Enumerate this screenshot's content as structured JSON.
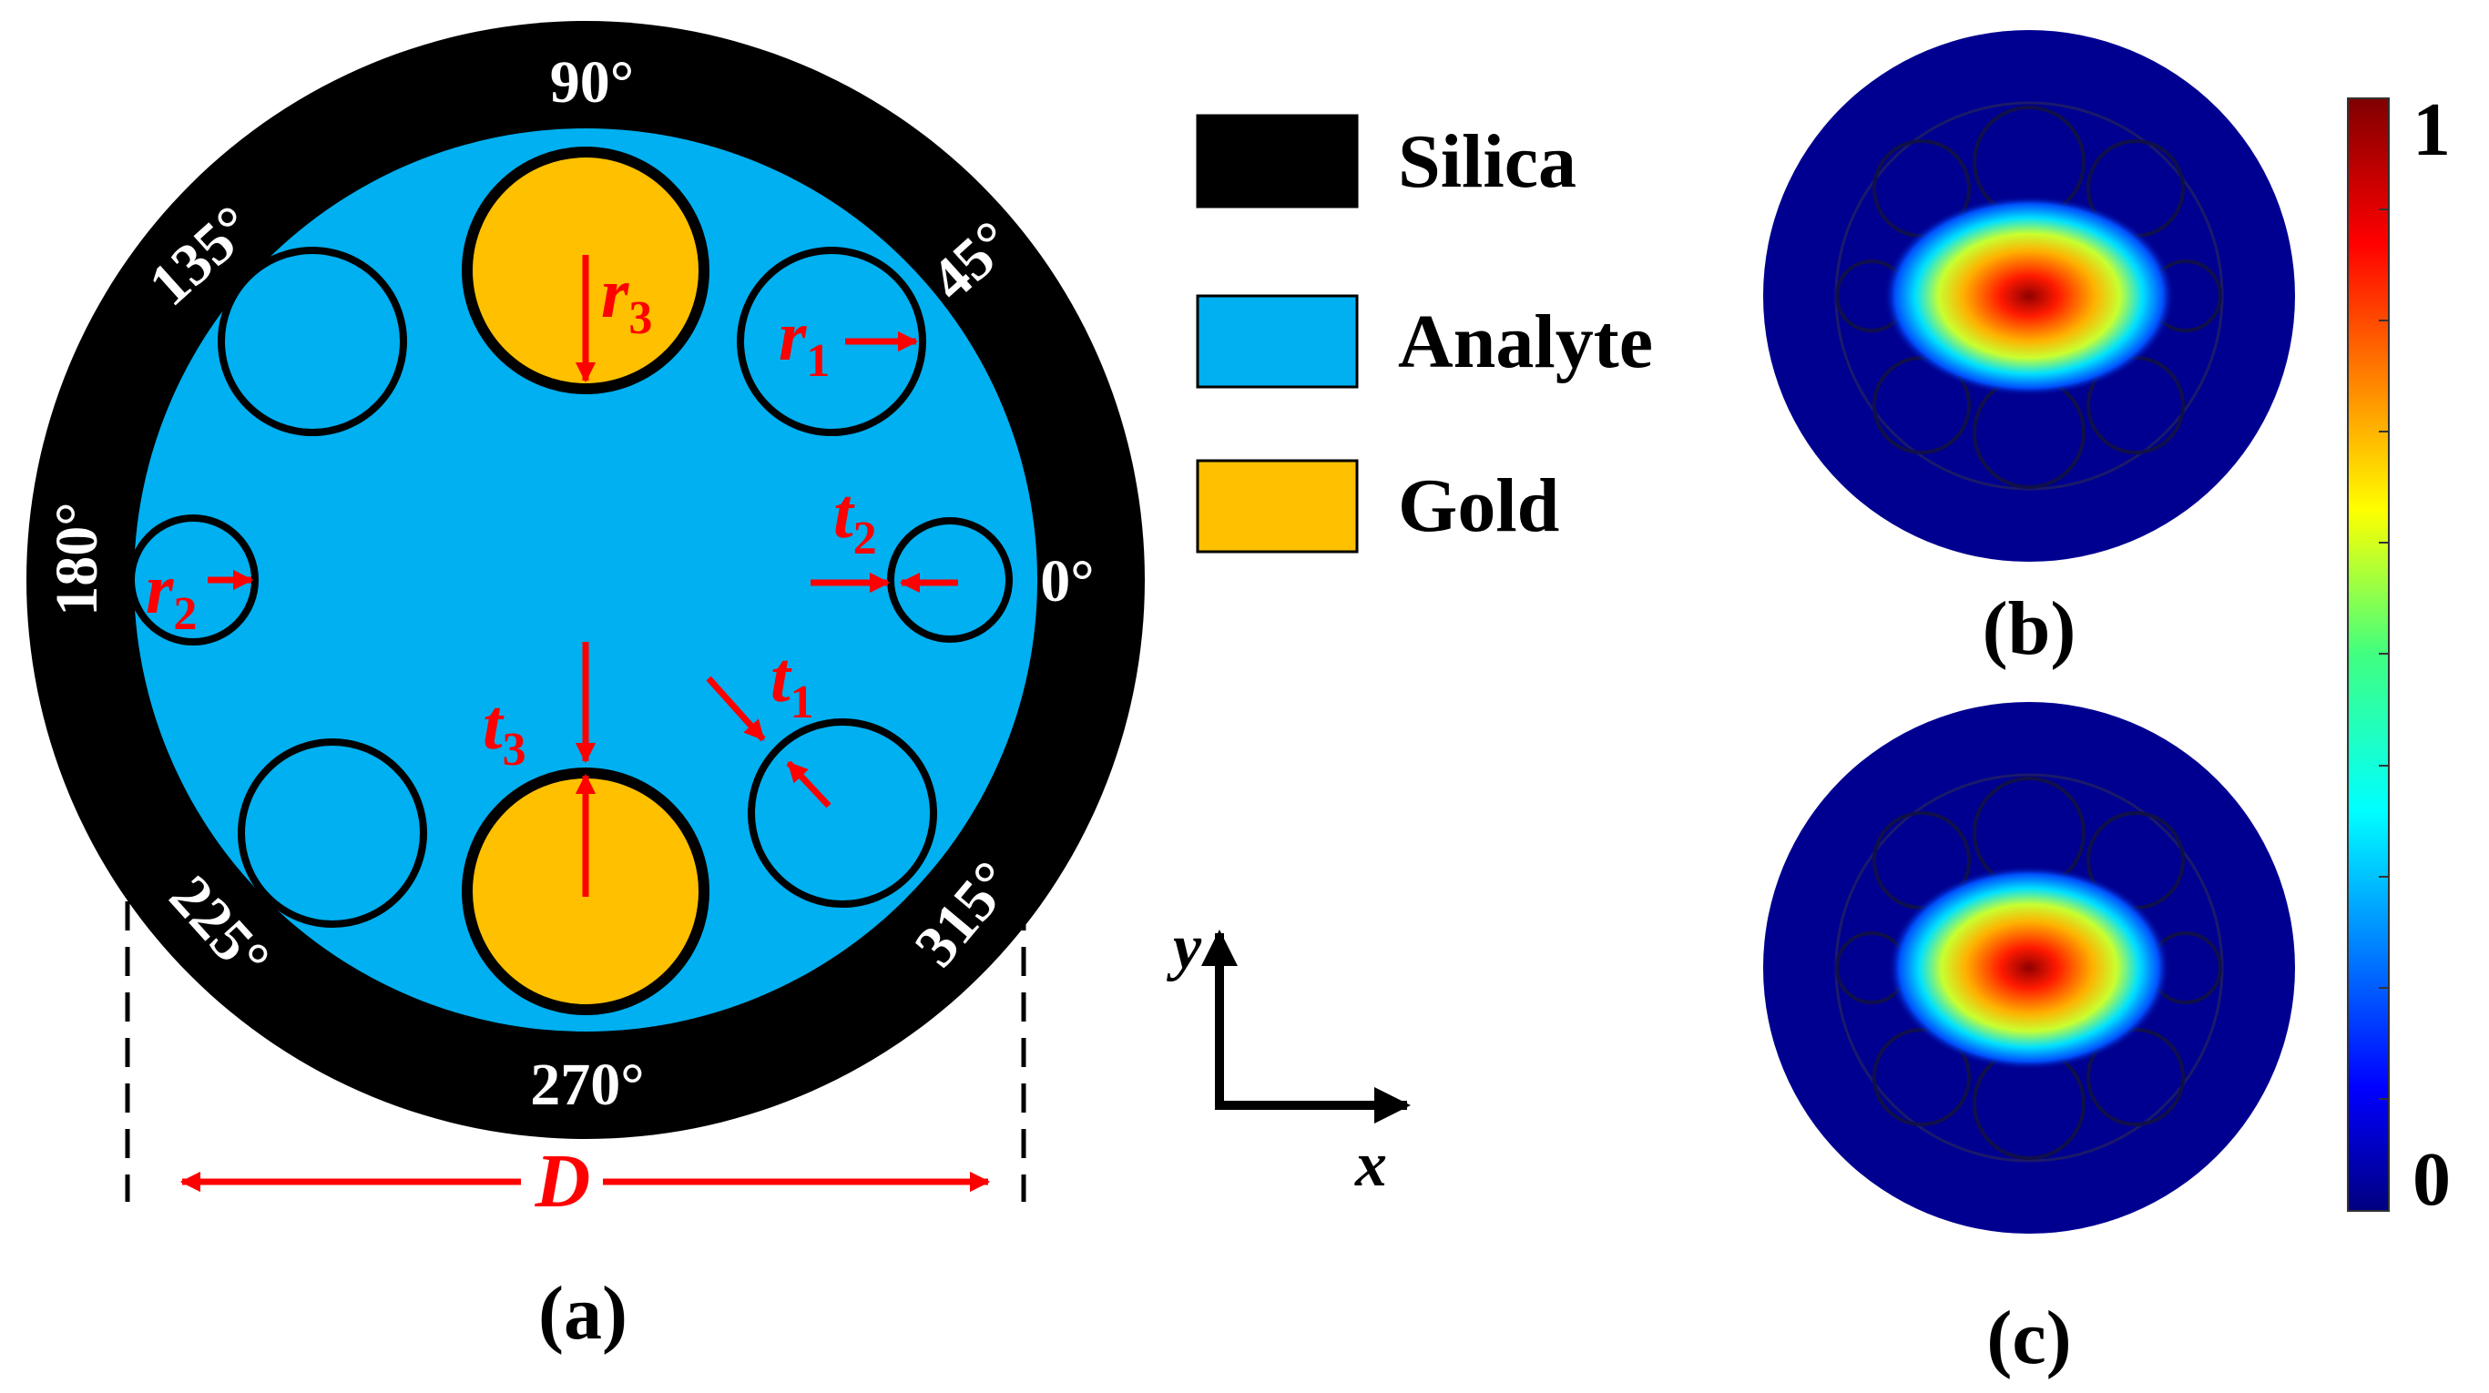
{
  "colors": {
    "silica": "#000000",
    "analyte": "#00b0f0",
    "gold": "#ffc000",
    "annotation": "#ff0000",
    "angle_text": "#ffffff",
    "field_background": "#000090"
  },
  "angles": [
    "90°",
    "45°",
    "0°",
    "315°",
    "270°",
    "225°",
    "180°",
    "135°"
  ],
  "labels": {
    "r1": "r",
    "r1_sub": "1",
    "r2": "r",
    "r2_sub": "2",
    "r3": "r",
    "r3_sub": "3",
    "t1": "t",
    "t1_sub": "1",
    "t2": "t",
    "t2_sub": "2",
    "t3": "t",
    "t3_sub": "3",
    "D": "D"
  },
  "legend": [
    {
      "label": "Silica",
      "color": "#000000"
    },
    {
      "label": "Analyte",
      "color": "#00b0f0"
    },
    {
      "label": "Gold",
      "color": "#ffc000"
    }
  ],
  "axes": {
    "x": "x",
    "y": "y"
  },
  "panels": {
    "a": "(a)",
    "b": "(b)",
    "c": "(c)"
  },
  "colorbar": {
    "max": "1",
    "min": "0",
    "colormap": "jet"
  }
}
